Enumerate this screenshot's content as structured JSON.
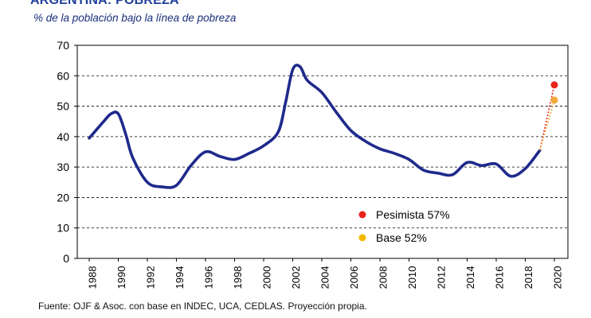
{
  "chart_data": {
    "type": "line",
    "title": "ARGENTINA: POBREZA",
    "subtitle": "% de la población bajo la línea de pobreza",
    "ylim": [
      0,
      70
    ],
    "yticks": [
      0,
      10,
      20,
      30,
      40,
      50,
      60,
      70
    ],
    "xlim": [
      1988,
      2020
    ],
    "xticks": [
      "1988",
      "1990",
      "1992",
      "1994",
      "1996",
      "1998",
      "2000",
      "2002",
      "2004",
      "2006",
      "2008",
      "2010",
      "2012",
      "2014",
      "2016",
      "2018",
      "2020"
    ],
    "grid": "horizontal dashed",
    "series": [
      {
        "color": "#1f2a8c",
        "x": [
          1988,
          1989,
          1989.5,
          1990,
          1990.5,
          1991,
          1992,
          1993,
          1994,
          1995,
          1996,
          1997,
          1998,
          1999,
          2000,
          2001,
          2001.5,
          2002,
          2002.5,
          2003,
          2004,
          2005,
          2006,
          2007,
          2008,
          2009,
          2010,
          2011,
          2012,
          2013,
          2014,
          2015,
          2016,
          2017,
          2018,
          2019
        ],
        "y": [
          39.5,
          45,
          47.5,
          47.5,
          41,
          33,
          25,
          23.5,
          24,
          30.5,
          35,
          33.5,
          32.5,
          34.5,
          37,
          41.5,
          51,
          62,
          63,
          58.5,
          54.5,
          48,
          42,
          38.5,
          36,
          34.5,
          32.5,
          29,
          28,
          27.5,
          31.5,
          30.5,
          31,
          27,
          29.5,
          35.5
        ]
      }
    ],
    "projections": [
      {
        "label": "Pesimista 57%",
        "from": [
          2019,
          35.5
        ],
        "to": [
          2020,
          57
        ],
        "color": "#e8231b"
      },
      {
        "label": "Base 52%",
        "from": [
          2019,
          35.5
        ],
        "to": [
          2020,
          52
        ],
        "color": "#f2a93b"
      }
    ],
    "legend": [
      {
        "label": "Pesimista 57%",
        "color": "#e8231b"
      },
      {
        "label": "Base 52%",
        "color": "#f5b800"
      }
    ],
    "legend_position": "bottom-right"
  },
  "source": "Fuente: OJF & Asoc. con base en INDEC, UCA, CEDLAS. Proyección propia."
}
